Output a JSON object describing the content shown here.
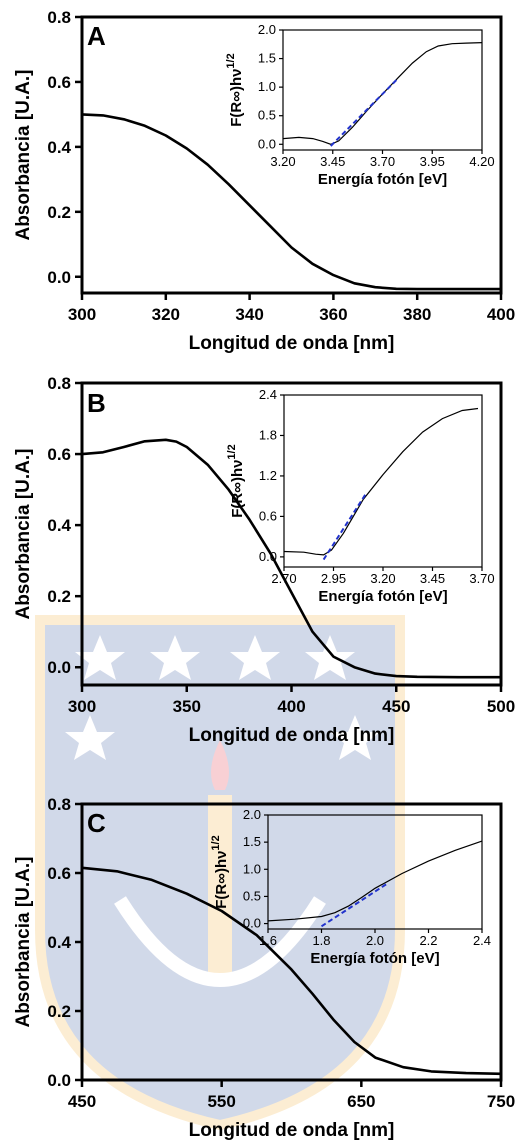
{
  "watermark": {
    "description": "university crest watermark with stars and torch",
    "colors": [
      "#3355a0",
      "#f2b03a",
      "#e03040"
    ]
  },
  "chart_data": [
    {
      "type": "line",
      "panel_label": "A",
      "xlabel": "Longitud de onda [nm]",
      "ylabel": "Absorbancia [U.A.]",
      "xlim": [
        300,
        400
      ],
      "ylim": [
        -0.05,
        0.8
      ],
      "xticks": [
        300,
        320,
        340,
        360,
        380,
        400
      ],
      "yticks": [
        0.0,
        0.2,
        0.4,
        0.6,
        0.8
      ],
      "xtick_labels": [
        "300",
        "320",
        "340",
        "360",
        "380",
        "400"
      ],
      "ytick_labels": [
        "0.0",
        "0.2",
        "0.4",
        "0.6",
        "0.8"
      ],
      "series": [
        {
          "color": "#000000",
          "x": [
            300,
            305,
            310,
            315,
            320,
            325,
            330,
            335,
            340,
            345,
            350,
            355,
            360,
            365,
            370,
            375,
            380,
            390,
            400
          ],
          "y": [
            0.5,
            0.497,
            0.485,
            0.465,
            0.435,
            0.395,
            0.345,
            0.285,
            0.22,
            0.155,
            0.09,
            0.04,
            0.005,
            -0.02,
            -0.032,
            -0.037,
            -0.038,
            -0.038,
            -0.038
          ]
        }
      ],
      "inset": {
        "xlabel": "Energía fotón [eV]",
        "ylabel": "F(R∞)hν",
        "ylabel_superscript": "1/2",
        "xlim": [
          3.2,
          4.2
        ],
        "ylim": [
          -0.1,
          2.0
        ],
        "xticks": [
          3.2,
          3.45,
          3.7,
          3.95,
          4.2
        ],
        "yticks": [
          0.0,
          0.5,
          1.0,
          1.5,
          2.0
        ],
        "xtick_labels": [
          "3.20",
          "3.45",
          "3.70",
          "3.95",
          "4.20"
        ],
        "ytick_labels": [
          "0.0",
          "0.5",
          "1.0",
          "1.5",
          "2.0"
        ],
        "curve": {
          "color": "#000000",
          "x": [
            3.2,
            3.28,
            3.35,
            3.4,
            3.44,
            3.48,
            3.55,
            3.62,
            3.7,
            3.78,
            3.85,
            3.92,
            3.98,
            4.05,
            4.12,
            4.2
          ],
          "y": [
            0.1,
            0.12,
            0.1,
            0.05,
            0.0,
            0.06,
            0.3,
            0.58,
            0.88,
            1.17,
            1.42,
            1.62,
            1.72,
            1.76,
            1.77,
            1.78
          ]
        },
        "fit": {
          "color": "#2233cc",
          "x": [
            3.44,
            3.78
          ],
          "y": [
            -0.03,
            1.16
          ]
        }
      }
    },
    {
      "type": "line",
      "panel_label": "B",
      "xlabel": "Longitud de onda [nm]",
      "ylabel": "Absorbancia [U.A.]",
      "xlim": [
        300,
        500
      ],
      "ylim": [
        -0.05,
        0.8
      ],
      "xticks": [
        300,
        350,
        400,
        450,
        500
      ],
      "yticks": [
        0.0,
        0.2,
        0.4,
        0.6,
        0.8
      ],
      "xtick_labels": [
        "300",
        "350",
        "400",
        "450",
        "500"
      ],
      "ytick_labels": [
        "0.0",
        "0.2",
        "0.4",
        "0.6",
        "0.8"
      ],
      "series": [
        {
          "color": "#000000",
          "x": [
            300,
            310,
            320,
            330,
            340,
            345,
            350,
            360,
            370,
            380,
            390,
            400,
            410,
            420,
            430,
            440,
            450,
            460,
            480,
            500
          ],
          "y": [
            0.6,
            0.605,
            0.62,
            0.636,
            0.64,
            0.635,
            0.62,
            0.57,
            0.5,
            0.415,
            0.32,
            0.21,
            0.1,
            0.03,
            0.0,
            -0.018,
            -0.025,
            -0.027,
            -0.028,
            -0.028
          ]
        }
      ],
      "inset": {
        "xlabel": "Energía fotón [eV]",
        "ylabel": "F(R∞)hν",
        "ylabel_superscript": "1/2",
        "xlim": [
          2.7,
          3.7
        ],
        "ylim": [
          -0.15,
          2.4
        ],
        "xticks": [
          2.7,
          2.95,
          3.2,
          3.45,
          3.7
        ],
        "yticks": [
          0.0,
          0.6,
          1.2,
          1.8,
          2.4
        ],
        "xtick_labels": [
          "2.70",
          "2.95",
          "3.20",
          "3.45",
          "3.70"
        ],
        "ytick_labels": [
          "0.0",
          "0.6",
          "1.2",
          "1.8",
          "2.4"
        ],
        "curve": {
          "color": "#000000",
          "x": [
            2.7,
            2.8,
            2.86,
            2.9,
            2.94,
            3.0,
            3.05,
            3.1,
            3.2,
            3.3,
            3.4,
            3.5,
            3.6,
            3.68
          ],
          "y": [
            0.08,
            0.07,
            0.04,
            0.03,
            0.1,
            0.35,
            0.6,
            0.85,
            1.22,
            1.56,
            1.85,
            2.05,
            2.17,
            2.2
          ]
        },
        "fit": {
          "color": "#2233cc",
          "x": [
            2.9,
            3.11
          ],
          "y": [
            -0.04,
            0.92
          ]
        }
      }
    },
    {
      "type": "line",
      "panel_label": "C",
      "xlabel": "Longitud de onda [nm]",
      "ylabel": "Absorbancia [U.A.]",
      "xlim": [
        450,
        750
      ],
      "ylim": [
        0.0,
        0.8
      ],
      "xticks": [
        450,
        550,
        650,
        750
      ],
      "yticks": [
        0.0,
        0.2,
        0.4,
        0.6,
        0.8
      ],
      "xtick_labels": [
        "450",
        "550",
        "650",
        "750"
      ],
      "ytick_labels": [
        "0.0",
        "0.2",
        "0.4",
        "0.6",
        "0.8"
      ],
      "series": [
        {
          "color": "#000000",
          "x": [
            450,
            475,
            500,
            525,
            550,
            575,
            600,
            615,
            630,
            645,
            660,
            680,
            700,
            725,
            750
          ],
          "y": [
            0.615,
            0.605,
            0.58,
            0.54,
            0.49,
            0.42,
            0.32,
            0.25,
            0.175,
            0.11,
            0.065,
            0.037,
            0.025,
            0.02,
            0.018
          ]
        }
      ],
      "inset": {
        "xlabel": "Energía fotón [eV]",
        "ylabel": "F(R∞)hν",
        "ylabel_superscript": "1/2",
        "xlim": [
          1.6,
          2.4
        ],
        "ylim": [
          -0.1,
          2.0
        ],
        "xticks": [
          1.6,
          1.8,
          2.0,
          2.2,
          2.4
        ],
        "yticks": [
          0.0,
          0.5,
          1.0,
          1.5,
          2.0
        ],
        "xtick_labels": [
          "1.6",
          "1.8",
          "2.0",
          "2.2",
          "2.4"
        ],
        "ytick_labels": [
          "0.0",
          "0.5",
          "1.0",
          "1.5",
          "2.0"
        ],
        "curve": {
          "color": "#000000",
          "x": [
            1.6,
            1.7,
            1.8,
            1.85,
            1.9,
            1.95,
            2.0,
            2.1,
            2.2,
            2.3,
            2.4
          ],
          "y": [
            0.05,
            0.08,
            0.13,
            0.2,
            0.32,
            0.48,
            0.65,
            0.92,
            1.15,
            1.35,
            1.52
          ]
        },
        "fit": {
          "color": "#2233cc",
          "x": [
            1.8,
            2.05
          ],
          "y": [
            -0.05,
            0.75
          ]
        }
      }
    }
  ]
}
